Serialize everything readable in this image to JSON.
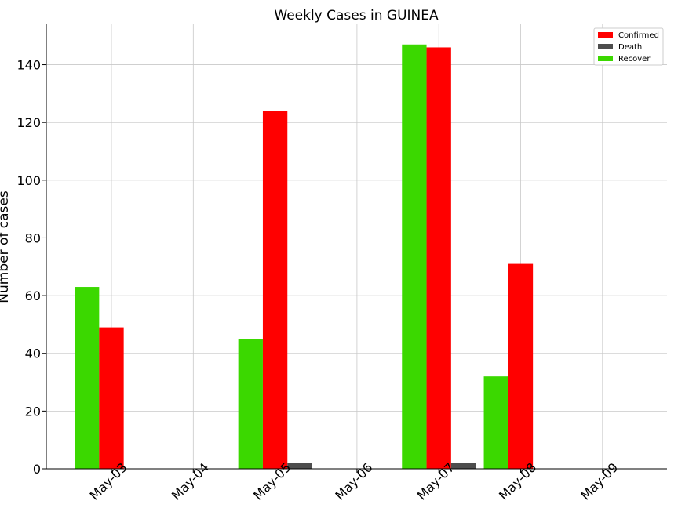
{
  "chart_data": {
    "type": "bar",
    "title": "Weekly Cases in GUINEA",
    "xlabel": "",
    "ylabel": "Number of cases",
    "categories": [
      "May-03",
      "May-04",
      "May-05",
      "May-06",
      "May-07",
      "May-08",
      "May-09"
    ],
    "ylim": [
      0,
      154
    ],
    "yticks": [
      0,
      20,
      40,
      60,
      80,
      100,
      120,
      140
    ],
    "grid": true,
    "legend_position": "top-right",
    "series": [
      {
        "name": "Recover",
        "color": "#3bd800",
        "values": [
          63,
          null,
          45,
          null,
          147,
          32,
          null
        ]
      },
      {
        "name": "Confirmed",
        "color": "#ff0000",
        "values": [
          49,
          null,
          124,
          null,
          146,
          71,
          null
        ]
      },
      {
        "name": "Death",
        "color": "#4d4d4d",
        "values": [
          0,
          null,
          2,
          null,
          2,
          0,
          null
        ]
      }
    ],
    "legend": [
      {
        "name": "Confirmed",
        "color": "#ff0000"
      },
      {
        "name": "Death",
        "color": "#4d4d4d"
      },
      {
        "name": "Recover",
        "color": "#3bd800"
      }
    ]
  }
}
